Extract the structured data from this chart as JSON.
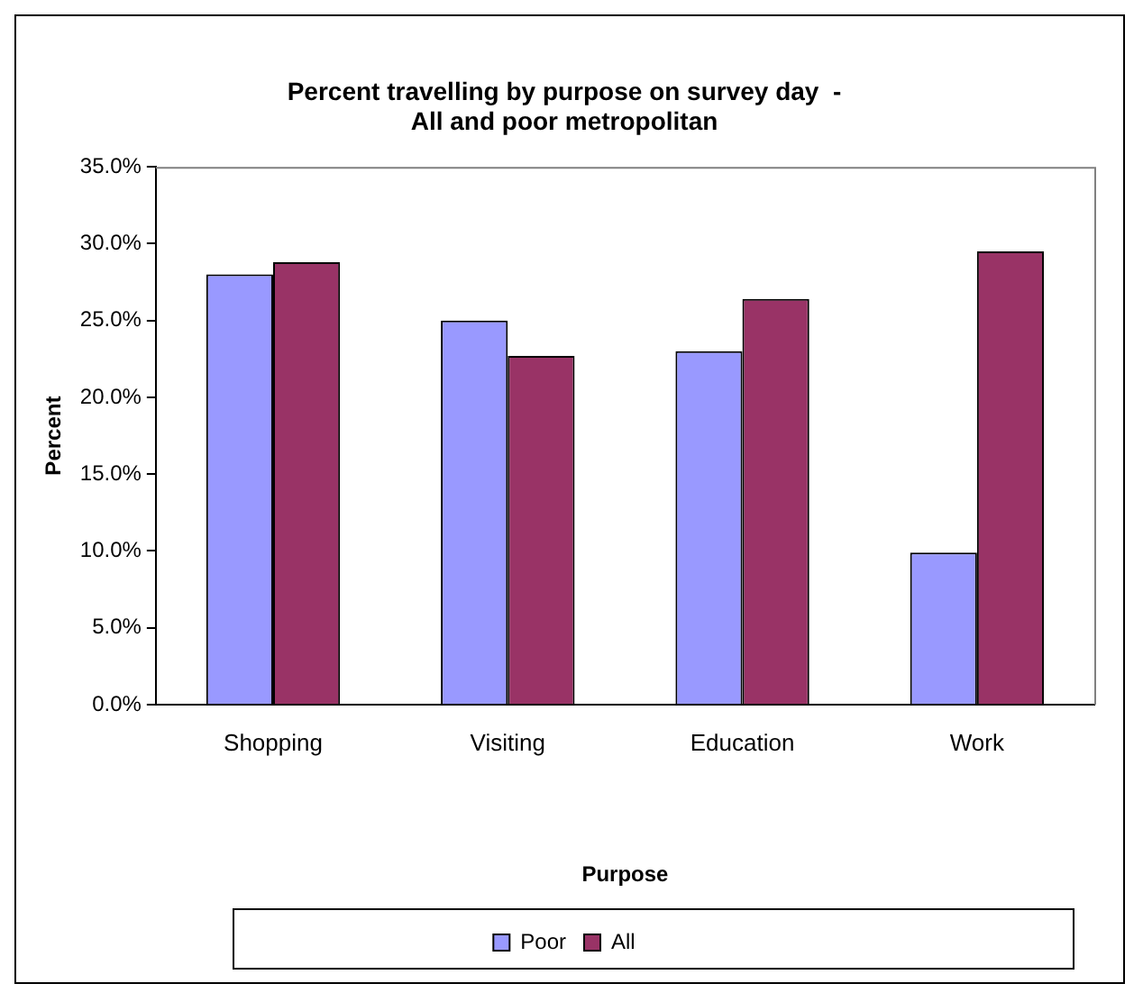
{
  "chart_data": {
    "type": "bar",
    "title": "Percent travelling by purpose on survey day  -\nAll and poor metropolitan",
    "xlabel": "Purpose",
    "ylabel": "Percent",
    "categories": [
      "Shopping",
      "Visiting",
      "Education",
      "Work"
    ],
    "series": [
      {
        "name": "Poor",
        "color": "#9999ff",
        "values": [
          28.0,
          25.0,
          23.0,
          9.9
        ]
      },
      {
        "name": "All",
        "color": "#993366",
        "values": [
          28.8,
          22.7,
          26.4,
          29.5
        ]
      }
    ],
    "ylim": [
      0,
      35
    ],
    "yticks": [
      {
        "value": 0,
        "label": "0.0%"
      },
      {
        "value": 5,
        "label": "5.0%"
      },
      {
        "value": 10,
        "label": "10.0%"
      },
      {
        "value": 15,
        "label": "15.0%"
      },
      {
        "value": 20,
        "label": "20.0%"
      },
      {
        "value": 25,
        "label": "25.0%"
      },
      {
        "value": 30,
        "label": "30.0%"
      },
      {
        "value": 35,
        "label": "35.0%"
      }
    ],
    "grid": false,
    "legend": "bottom"
  }
}
